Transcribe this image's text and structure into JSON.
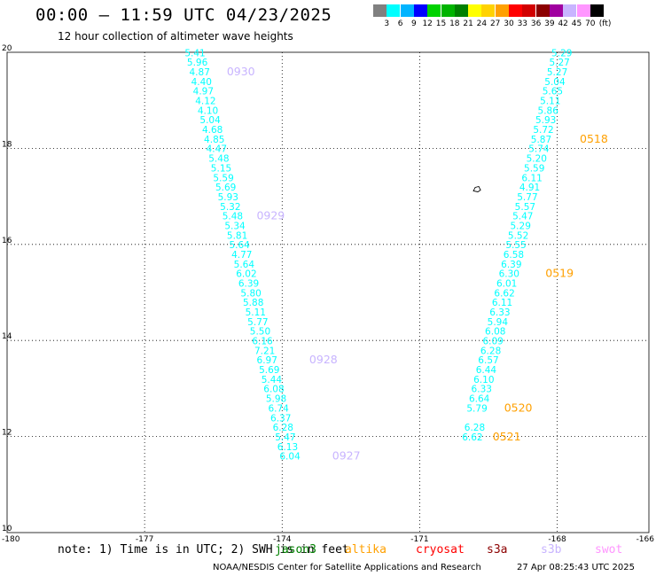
{
  "header": {
    "title": "00:00 – 11:59 UTC 04/23/2025",
    "subtitle": "12 hour collection of altimeter wave heights"
  },
  "legend": {
    "labels": [
      "3",
      "6",
      "9",
      "12",
      "15",
      "18",
      "21",
      "24",
      "27",
      "30",
      "33",
      "36",
      "39",
      "42",
      "45",
      "70"
    ],
    "unit": "(ft)",
    "colors": [
      "#808080",
      "#00ffff",
      "#00b4ff",
      "#0000ff",
      "#00d200",
      "#00b400",
      "#008000",
      "#ffff00",
      "#ffd200",
      "#ffa000",
      "#ff0000",
      "#d20000",
      "#8c0000",
      "#a000a0",
      "#c8b4ff",
      "#ff96ff",
      "#000000"
    ]
  },
  "footer": {
    "note": "note: 1) Time is in UTC; 2) SWH is in feet",
    "satellites": [
      {
        "label": "jason3",
        "color": "#008000"
      },
      {
        "label": "altika",
        "color": "#ffa000"
      },
      {
        "label": "cryosat",
        "color": "#ff0000"
      },
      {
        "label": "s3a",
        "color": "#8c0000"
      },
      {
        "label": "s3b",
        "color": "#c8b4ff"
      },
      {
        "label": "swot",
        "color": "#ff96ff"
      }
    ],
    "credit": "NOAA/NESDIS Center for Satellite Applications and Research",
    "timestamp": "27 Apr 08:25:43 UTC 2025"
  },
  "chart_data": {
    "type": "scatter",
    "title": "00:00 – 11:59 UTC 04/23/2025",
    "subtitle": "12 hour collection of altimeter wave heights",
    "xlabel": "",
    "ylabel": "",
    "xlim": [
      -180,
      -166
    ],
    "ylim": [
      10,
      20
    ],
    "xticks": [
      -180,
      -177,
      -174,
      -171,
      -168,
      -166
    ],
    "yticks": [
      10,
      12,
      14,
      16,
      18,
      20
    ],
    "grid": "dotted",
    "point_color": "#00ffff",
    "series": [
      {
        "color": "#00ffff",
        "points": [
          {
            "x": -175.9,
            "y": 19.92,
            "label": "5.41"
          },
          {
            "x": -175.85,
            "y": 19.72,
            "label": "5.96"
          },
          {
            "x": -175.8,
            "y": 19.52,
            "label": "4.87"
          },
          {
            "x": -175.76,
            "y": 19.32,
            "label": "4.40"
          },
          {
            "x": -175.72,
            "y": 19.12,
            "label": "4.97"
          },
          {
            "x": -175.67,
            "y": 18.92,
            "label": "4.12"
          },
          {
            "x": -175.62,
            "y": 18.72,
            "label": "4.10"
          },
          {
            "x": -175.57,
            "y": 18.52,
            "label": "5.04"
          },
          {
            "x": -175.52,
            "y": 18.32,
            "label": "4.68"
          },
          {
            "x": -175.48,
            "y": 18.12,
            "label": "4.85"
          },
          {
            "x": -175.43,
            "y": 17.92,
            "label": "4.47"
          },
          {
            "x": -175.38,
            "y": 17.72,
            "label": "5.48"
          },
          {
            "x": -175.33,
            "y": 17.52,
            "label": "5.15"
          },
          {
            "x": -175.28,
            "y": 17.32,
            "label": "5.59"
          },
          {
            "x": -175.23,
            "y": 17.12,
            "label": "5.69"
          },
          {
            "x": -175.18,
            "y": 16.92,
            "label": "5.93"
          },
          {
            "x": -175.13,
            "y": 16.72,
            "label": "5.32"
          },
          {
            "x": -175.08,
            "y": 16.52,
            "label": "5.48"
          },
          {
            "x": -175.03,
            "y": 16.32,
            "label": "5.34"
          },
          {
            "x": -174.98,
            "y": 16.12,
            "label": "5.81"
          },
          {
            "x": -174.93,
            "y": 15.92,
            "label": "5.64"
          },
          {
            "x": -174.88,
            "y": 15.72,
            "label": "4.77"
          },
          {
            "x": -174.83,
            "y": 15.52,
            "label": "5.64"
          },
          {
            "x": -174.78,
            "y": 15.32,
            "label": "6.02"
          },
          {
            "x": -174.73,
            "y": 15.12,
            "label": "6.39"
          },
          {
            "x": -174.68,
            "y": 14.92,
            "label": "5.80"
          },
          {
            "x": -174.63,
            "y": 14.72,
            "label": "5.88"
          },
          {
            "x": -174.58,
            "y": 14.52,
            "label": "5.11"
          },
          {
            "x": -174.53,
            "y": 14.32,
            "label": "5.77"
          },
          {
            "x": -174.48,
            "y": 14.12,
            "label": "5.50"
          },
          {
            "x": -174.43,
            "y": 13.92,
            "label": "6.16"
          },
          {
            "x": -174.38,
            "y": 13.72,
            "label": "7.21"
          },
          {
            "x": -174.33,
            "y": 13.52,
            "label": "6.97"
          },
          {
            "x": -174.28,
            "y": 13.32,
            "label": "5.69"
          },
          {
            "x": -174.23,
            "y": 13.12,
            "label": "5.44"
          },
          {
            "x": -174.18,
            "y": 12.92,
            "label": "6.08"
          },
          {
            "x": -174.13,
            "y": 12.72,
            "label": "5.98"
          },
          {
            "x": -174.08,
            "y": 12.52,
            "label": "6.74"
          },
          {
            "x": -174.03,
            "y": 12.32,
            "label": "6.37"
          },
          {
            "x": -173.98,
            "y": 12.12,
            "label": "6.28"
          },
          {
            "x": -173.93,
            "y": 11.92,
            "label": "5.47"
          },
          {
            "x": -173.88,
            "y": 11.72,
            "label": "6.13"
          },
          {
            "x": -173.83,
            "y": 11.52,
            "label": "6.04"
          }
        ]
      },
      {
        "color": "#00ffff",
        "points": [
          {
            "x": -167.9,
            "y": 19.92,
            "label": "5.29"
          },
          {
            "x": -167.95,
            "y": 19.72,
            "label": "5.27"
          },
          {
            "x": -168.0,
            "y": 19.52,
            "label": "5.27"
          },
          {
            "x": -168.05,
            "y": 19.32,
            "label": "5.04"
          },
          {
            "x": -168.1,
            "y": 19.12,
            "label": "5.65"
          },
          {
            "x": -168.15,
            "y": 18.92,
            "label": "5.11"
          },
          {
            "x": -168.2,
            "y": 18.72,
            "label": "5.86"
          },
          {
            "x": -168.25,
            "y": 18.52,
            "label": "5.93"
          },
          {
            "x": -168.3,
            "y": 18.32,
            "label": "5.72"
          },
          {
            "x": -168.35,
            "y": 18.12,
            "label": "5.87"
          },
          {
            "x": -168.4,
            "y": 17.92,
            "label": "5.74"
          },
          {
            "x": -168.45,
            "y": 17.72,
            "label": "5.20"
          },
          {
            "x": -168.5,
            "y": 17.52,
            "label": "5.59"
          },
          {
            "x": -168.55,
            "y": 17.32,
            "label": "6.11"
          },
          {
            "x": -168.6,
            "y": 17.12,
            "label": "4.91"
          },
          {
            "x": -168.65,
            "y": 16.92,
            "label": "5.77"
          },
          {
            "x": -168.7,
            "y": 16.72,
            "label": "5.57"
          },
          {
            "x": -168.75,
            "y": 16.52,
            "label": "5.47"
          },
          {
            "x": -168.8,
            "y": 16.32,
            "label": "5.29"
          },
          {
            "x": -168.85,
            "y": 16.12,
            "label": "5.52"
          },
          {
            "x": -168.9,
            "y": 15.92,
            "label": "5.55"
          },
          {
            "x": -168.95,
            "y": 15.72,
            "label": "6.58"
          },
          {
            "x": -169.0,
            "y": 15.52,
            "label": "6.39"
          },
          {
            "x": -169.05,
            "y": 15.32,
            "label": "6.30"
          },
          {
            "x": -169.1,
            "y": 15.12,
            "label": "6.01"
          },
          {
            "x": -169.15,
            "y": 14.92,
            "label": "6.62"
          },
          {
            "x": -169.2,
            "y": 14.72,
            "label": "6.11"
          },
          {
            "x": -169.25,
            "y": 14.52,
            "label": "6.33"
          },
          {
            "x": -169.3,
            "y": 14.32,
            "label": "5.94"
          },
          {
            "x": -169.35,
            "y": 14.12,
            "label": "6.08"
          },
          {
            "x": -169.4,
            "y": 13.92,
            "label": "6.09"
          },
          {
            "x": -169.45,
            "y": 13.72,
            "label": "6.28"
          },
          {
            "x": -169.5,
            "y": 13.52,
            "label": "6.57"
          },
          {
            "x": -169.55,
            "y": 13.32,
            "label": "6.44"
          },
          {
            "x": -169.6,
            "y": 13.12,
            "label": "6.10"
          },
          {
            "x": -169.65,
            "y": 12.92,
            "label": "6.33"
          },
          {
            "x": -169.7,
            "y": 12.72,
            "label": "6.64"
          },
          {
            "x": -169.75,
            "y": 12.52,
            "label": "5.79"
          },
          {
            "x": -169.8,
            "y": 12.12,
            "label": "6.28"
          },
          {
            "x": -169.85,
            "y": 11.92,
            "label": "6.62"
          }
        ]
      }
    ],
    "time_labels": [
      {
        "x": -174.9,
        "y": 19.52,
        "label": "0930",
        "color": "#c8b4ff"
      },
      {
        "x": -174.25,
        "y": 16.52,
        "label": "0929",
        "color": "#c8b4ff"
      },
      {
        "x": -173.1,
        "y": 13.52,
        "label": "0928",
        "color": "#c8b4ff"
      },
      {
        "x": -172.6,
        "y": 11.52,
        "label": "0927",
        "color": "#c8b4ff"
      },
      {
        "x": -167.2,
        "y": 18.12,
        "label": "0518",
        "color": "#ffa000"
      },
      {
        "x": -167.95,
        "y": 15.32,
        "label": "0519",
        "color": "#ffa000"
      },
      {
        "x": -168.85,
        "y": 12.52,
        "label": "0520",
        "color": "#ffa000"
      },
      {
        "x": -169.1,
        "y": 11.92,
        "label": "0521",
        "color": "#ffa000"
      }
    ],
    "markers": [
      {
        "x": -169.75,
        "y": 17.15,
        "symbol": "island"
      }
    ]
  }
}
